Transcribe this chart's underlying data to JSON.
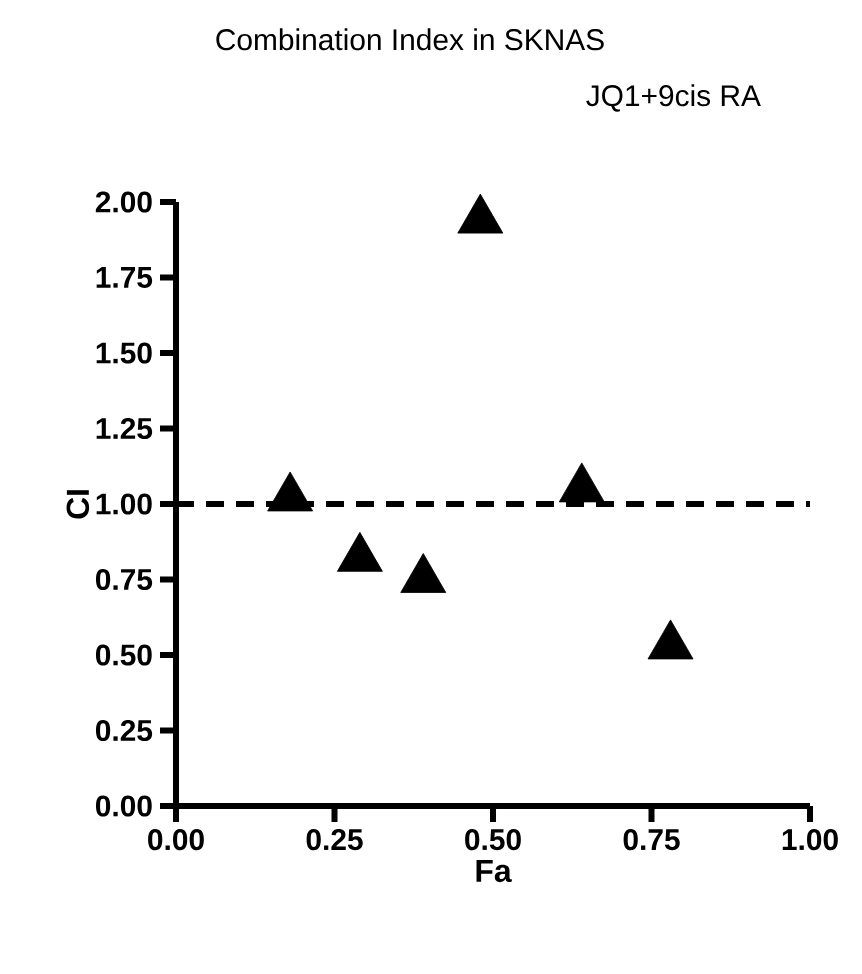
{
  "chart_data": {
    "type": "scatter",
    "title": "Combination Index in SKNAS",
    "subtitle": "JQ1+9cis RA",
    "xlabel": "Fa",
    "ylabel": "CI",
    "x": [
      0.18,
      0.29,
      0.39,
      0.48,
      0.64,
      0.78
    ],
    "values": [
      1.02,
      0.82,
      0.75,
      1.94,
      1.05,
      0.53
    ],
    "color": "#000000",
    "marker": "triangle",
    "grid": false,
    "xlim": [
      0,
      1
    ],
    "ylim": [
      0,
      2
    ],
    "xticks": [
      {
        "value": 0,
        "label": "0.00"
      },
      {
        "value": 0.25,
        "label": "0.25"
      },
      {
        "value": 0.5,
        "label": "0.50"
      },
      {
        "value": 0.75,
        "label": "0.75"
      },
      {
        "value": 1,
        "label": "1.00"
      }
    ],
    "yticks": [
      {
        "value": 0,
        "label": "0.00"
      },
      {
        "value": 0.25,
        "label": "0.25"
      },
      {
        "value": 0.5,
        "label": "0.50"
      },
      {
        "value": 0.75,
        "label": "0.75"
      },
      {
        "value": 1,
        "label": "1.00"
      },
      {
        "value": 1.25,
        "label": "1.25"
      },
      {
        "value": 1.5,
        "label": "1.50"
      },
      {
        "value": 1.75,
        "label": "1.75"
      },
      {
        "value": 2,
        "label": "2.00"
      }
    ],
    "ref_lines": [
      {
        "axis": "y",
        "value": 1,
        "line_style": "dashed",
        "color": "#000000"
      }
    ]
  }
}
